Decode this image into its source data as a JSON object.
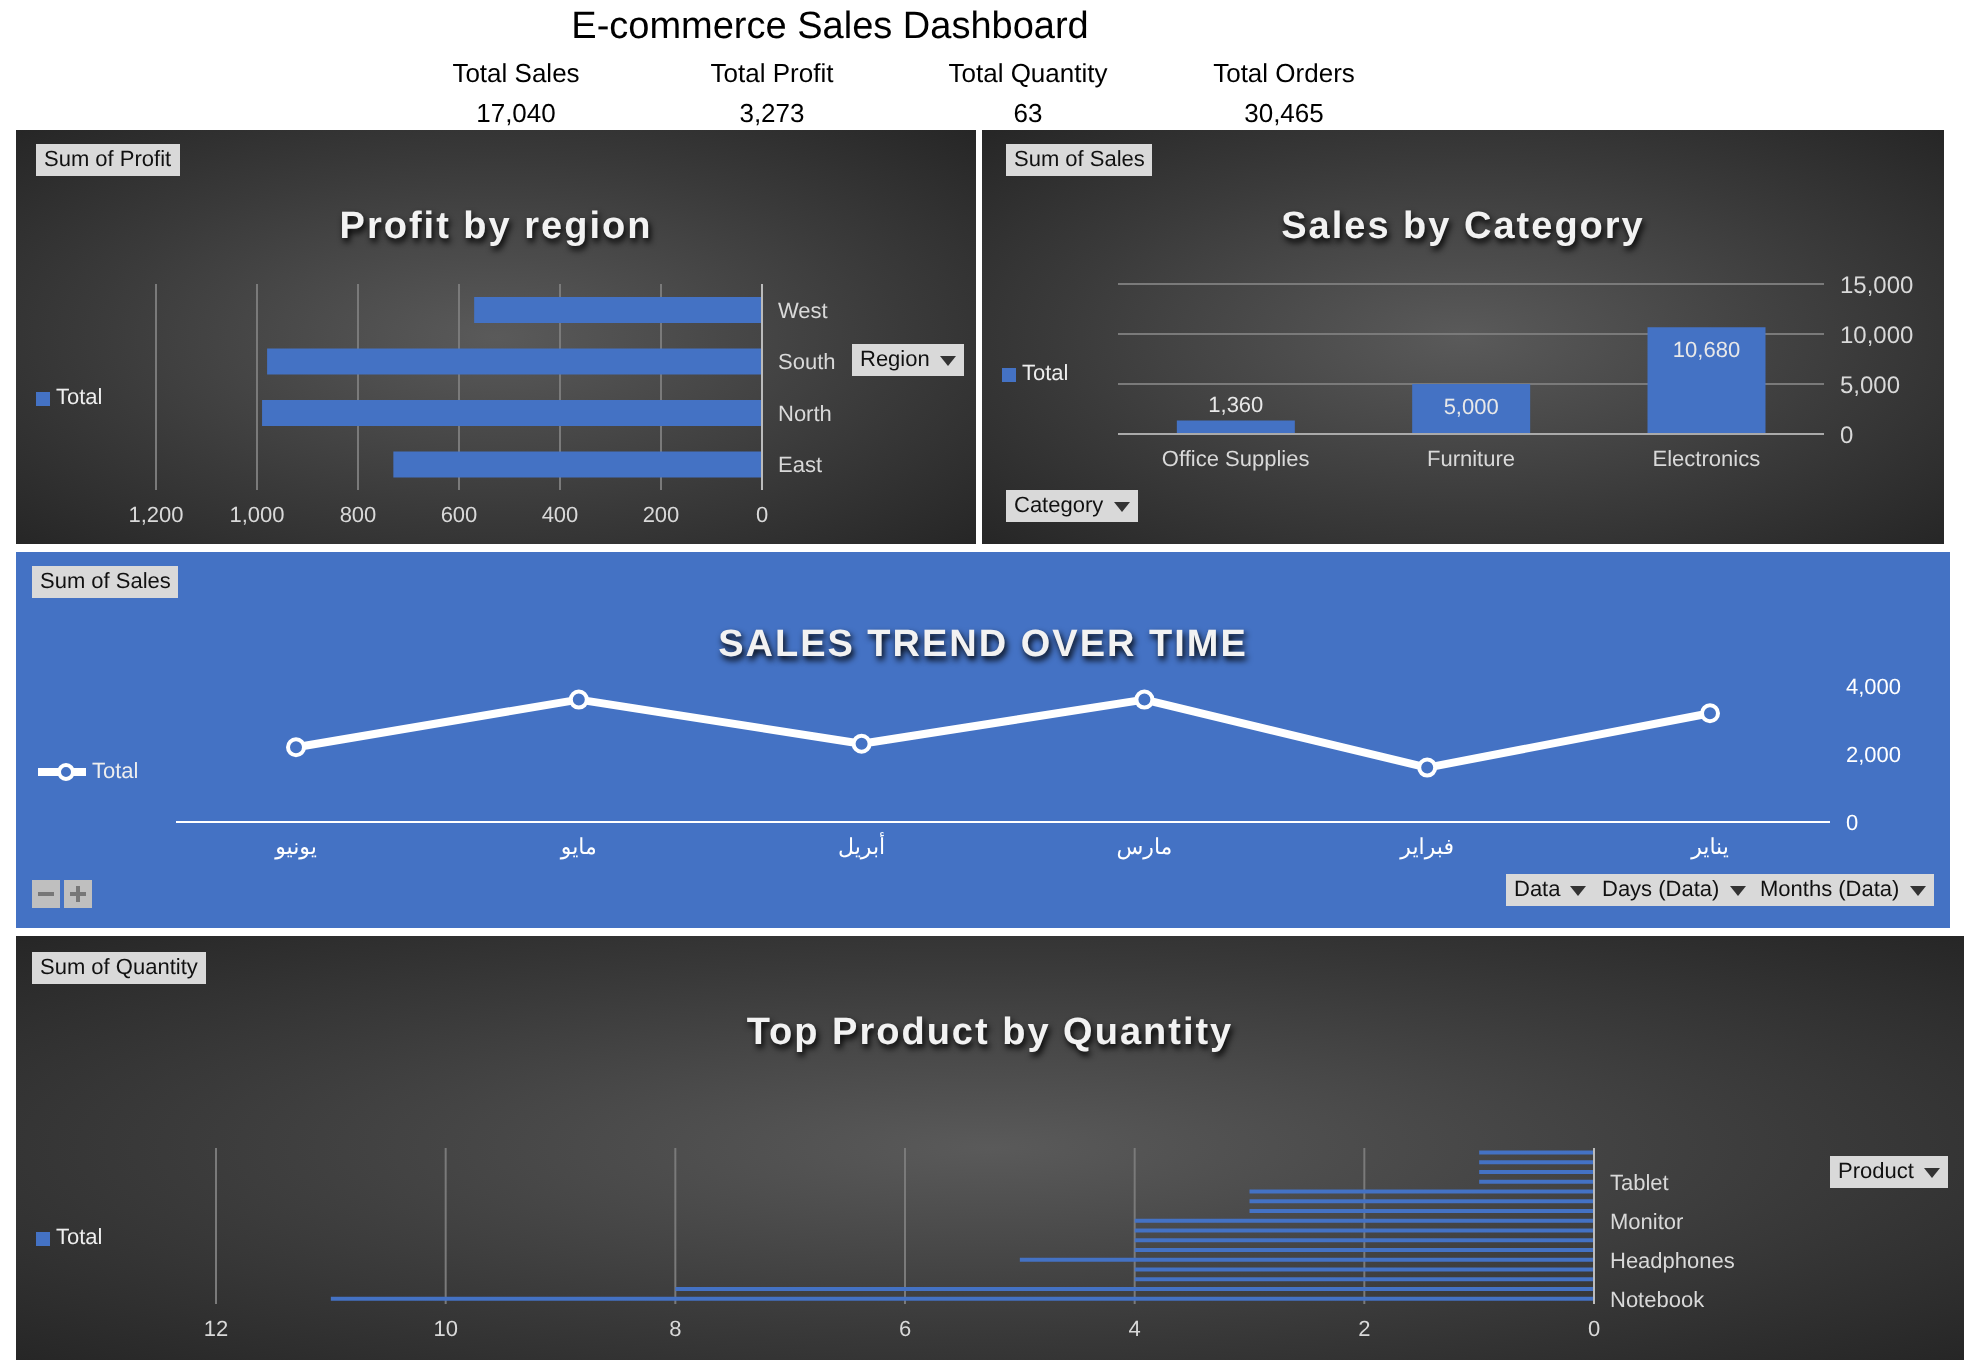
{
  "chart_data": [
    {
      "type": "other",
      "title": "E-commerce Sales Dashboard",
      "annotations": [
        "Total Sales",
        "17,040",
        "Total Profit",
        "3,273",
        "Total Quantity",
        "63",
        "Total Orders",
        "30,465"
      ]
    },
    {
      "type": "bar",
      "orientation": "horizontal",
      "title": "Profit by region",
      "categories": [
        "West",
        "South",
        "North",
        "East"
      ],
      "series": [
        {
          "name": "Total",
          "color": "#4472c4",
          "values": [
            570,
            980,
            990,
            730
          ]
        }
      ],
      "xlim": [
        1200,
        0
      ],
      "xticks": [
        {
          "value": 1200,
          "label": "1,200"
        },
        {
          "value": 1000,
          "label": "1,000"
        },
        800,
        600,
        400,
        200,
        0
      ],
      "grid": "x",
      "legend": "left",
      "annotations": [
        "Sum of Profit",
        "Region"
      ]
    },
    {
      "type": "bar",
      "title": "Sales by Category",
      "categories": [
        "Office Supplies",
        "Furniture",
        "Electronics"
      ],
      "series": [
        {
          "name": "Total",
          "color": "#4472c4",
          "values": [
            1360,
            5000,
            10680
          ]
        }
      ],
      "ylim": [
        0,
        15000
      ],
      "yticks": [
        0,
        {
          "value": 5000,
          "label": "5,000"
        },
        {
          "value": 10000,
          "label": "10,000"
        },
        {
          "value": 15000,
          "label": "15,000"
        }
      ],
      "grid": "y",
      "value_labels": [
        "1,360",
        "5,000",
        "10,680"
      ],
      "legend": "left",
      "annotations": [
        "Sum of Sales",
        "Category"
      ]
    },
    {
      "type": "line",
      "title": "SALES TREND OVER TIME",
      "categories": [
        "يونيو",
        "مايو",
        "أبريل",
        "مارس",
        "فبراير",
        "يناير"
      ],
      "series": [
        {
          "name": "Total",
          "color": "#ffffff",
          "values": [
            2200,
            3600,
            2300,
            3600,
            1600,
            3200
          ]
        }
      ],
      "ylim": [
        0,
        4000
      ],
      "yticks": [
        0,
        {
          "value": 2000,
          "label": "2,000"
        },
        {
          "value": 4000,
          "label": "4,000"
        }
      ],
      "marker": "circle",
      "legend": "left",
      "annotations": [
        "Sum of Sales",
        "Data",
        "Days (Data)",
        "Months (Data)"
      ]
    },
    {
      "type": "bar",
      "orientation": "horizontal",
      "title": "Top Product by Quantity",
      "categories": [
        null,
        null,
        null,
        "Tablet",
        null,
        null,
        null,
        "Monitor",
        null,
        null,
        null,
        "Headphones",
        null,
        null,
        null,
        "Notebook"
      ],
      "series": [
        {
          "name": "Total",
          "color": "#4472c4",
          "values": [
            1,
            1,
            1,
            1,
            3,
            3,
            3,
            4,
            4,
            4,
            4,
            5,
            4,
            4,
            8,
            11
          ]
        }
      ],
      "xlim": [
        12,
        0
      ],
      "xticks": [
        12,
        10,
        8,
        6,
        4,
        2,
        0
      ],
      "grid": "x",
      "legend": "left",
      "annotations": [
        "Sum of Quantity",
        "Product"
      ]
    }
  ]
}
